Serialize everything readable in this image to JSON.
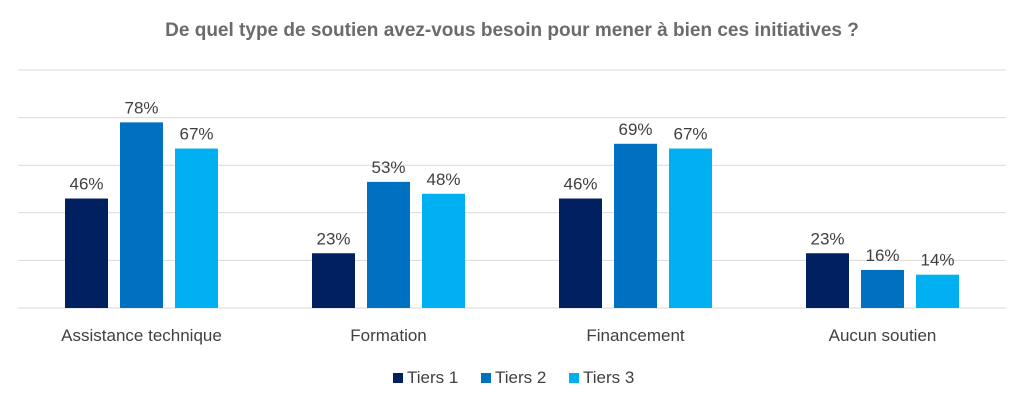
{
  "chart_data": {
    "type": "bar",
    "title": "De quel type de soutien avez-vous besoin pour mener à bien ces initiatives ?",
    "categories": [
      "Assistance technique",
      "Formation",
      "Financement",
      "Aucun soutien"
    ],
    "series": [
      {
        "name": "Tiers 1",
        "color": "#002060",
        "values": [
          46,
          23,
          46,
          23
        ],
        "labels": [
          "46%",
          "23%",
          "46%",
          "23%"
        ]
      },
      {
        "name": "Tiers 2",
        "color": "#0070C0",
        "values": [
          78,
          53,
          69,
          16
        ],
        "labels": [
          "78%",
          "53%",
          "69%",
          "16%"
        ]
      },
      {
        "name": "Tiers 3",
        "color": "#00B0F0",
        "values": [
          67,
          48,
          67,
          14
        ],
        "labels": [
          "67%",
          "48%",
          "67%",
          "14%"
        ]
      }
    ],
    "ylim": [
      0,
      100
    ],
    "gridlines": true,
    "legend_position": "bottom",
    "xlabel": "",
    "ylabel": ""
  }
}
